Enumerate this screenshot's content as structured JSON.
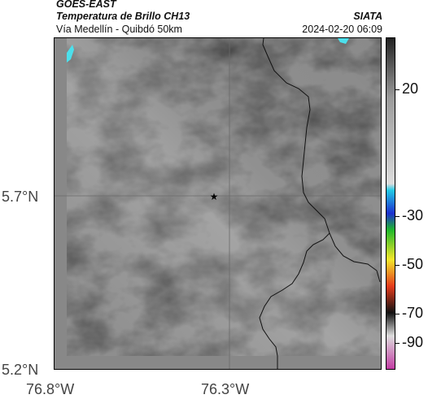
{
  "header": {
    "source": "GOES-EAST",
    "product": "Temperatura de Brillo CH13",
    "region": "Vía Medellín - Quibdó 50km",
    "org": "SIATA",
    "datetime": "2024-02-20 06:09"
  },
  "axes": {
    "lat_ticks": [
      "5.7°N",
      "5.2°N"
    ],
    "lon_ticks": [
      "76.8°W",
      "76.3°W"
    ]
  },
  "colorbar": {
    "ticks": [
      "20",
      "-30",
      "-50",
      "-70",
      "-90"
    ],
    "colors": {
      "dark": "#222222",
      "mid_gray": "#9a9a9a",
      "light_gray": "#dcdcdc",
      "cyan": "#21c9e5",
      "blue": "#1c2fd0",
      "green": "#1fb82b",
      "yellow": "#f5e62a",
      "red": "#e53b1c",
      "black": "#111111",
      "magenta": "#c23ca3"
    }
  },
  "map": {
    "marker_icon": "star-icon",
    "image_colors": [
      "#7c7c7c",
      "#b4b4b4",
      "#4ce0ec"
    ]
  }
}
